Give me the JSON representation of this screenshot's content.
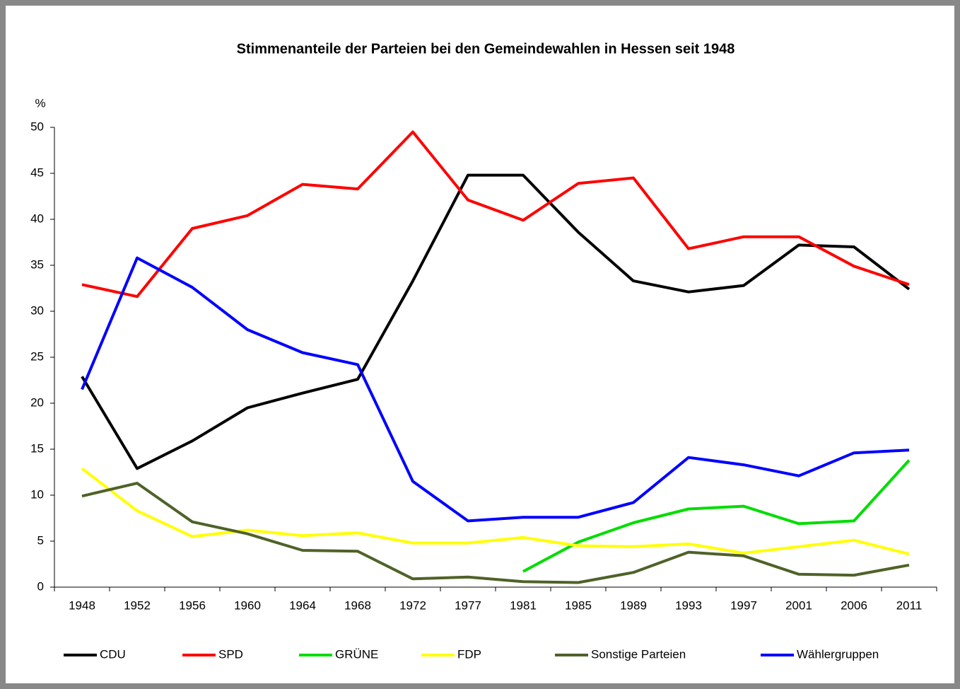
{
  "chart_data": {
    "type": "line",
    "title": "Stimmenanteile der Parteien bei den Gemeindewahlen in Hessen seit 1948",
    "y_label": "%",
    "categories": [
      "1948",
      "1952",
      "1956",
      "1960",
      "1964",
      "1968",
      "1972",
      "1977",
      "1981",
      "1985",
      "1989",
      "1993",
      "1997",
      "2001",
      "2006",
      "2011"
    ],
    "series": [
      {
        "name": "CDU",
        "color": "#000000",
        "values": [
          22.9,
          12.9,
          15.9,
          19.5,
          21.1,
          22.6,
          33.3,
          44.8,
          44.8,
          38.6,
          33.3,
          32.1,
          32.8,
          37.2,
          37.0,
          32.4
        ]
      },
      {
        "name": "SPD",
        "color": "#ff0000",
        "values": [
          32.9,
          31.6,
          39.0,
          40.4,
          43.8,
          43.3,
          49.5,
          42.1,
          39.9,
          43.9,
          44.5,
          36.8,
          38.1,
          38.1,
          34.9,
          32.9
        ]
      },
      {
        "name": "GRÜNE",
        "color": "#00dd00",
        "values": [
          null,
          null,
          null,
          null,
          null,
          null,
          null,
          null,
          1.7,
          4.9,
          7.0,
          8.5,
          8.8,
          6.9,
          7.2,
          13.8
        ]
      },
      {
        "name": "FDP",
        "color": "#ffff00",
        "values": [
          12.9,
          8.3,
          5.5,
          6.2,
          5.6,
          5.9,
          4.8,
          4.8,
          5.4,
          4.5,
          4.4,
          4.7,
          3.7,
          4.4,
          5.1,
          3.6
        ]
      },
      {
        "name": "Sonstige Parteien",
        "color": "#4f6228",
        "values": [
          9.9,
          11.3,
          7.1,
          5.8,
          4.0,
          3.9,
          0.9,
          1.1,
          0.6,
          0.5,
          1.6,
          3.8,
          3.4,
          1.4,
          1.3,
          2.4
        ]
      },
      {
        "name": "Wählergruppen",
        "color": "#0000ff",
        "values": [
          21.5,
          35.8,
          32.6,
          28.0,
          25.5,
          24.2,
          11.5,
          7.2,
          7.6,
          7.6,
          9.2,
          14.1,
          13.3,
          12.1,
          14.6,
          14.9
        ]
      }
    ],
    "ylim": [
      0,
      50
    ],
    "yticks": [
      0,
      5,
      10,
      15,
      20,
      25,
      30,
      35,
      40,
      45,
      50
    ],
    "grid": false,
    "legend": "bottom"
  }
}
